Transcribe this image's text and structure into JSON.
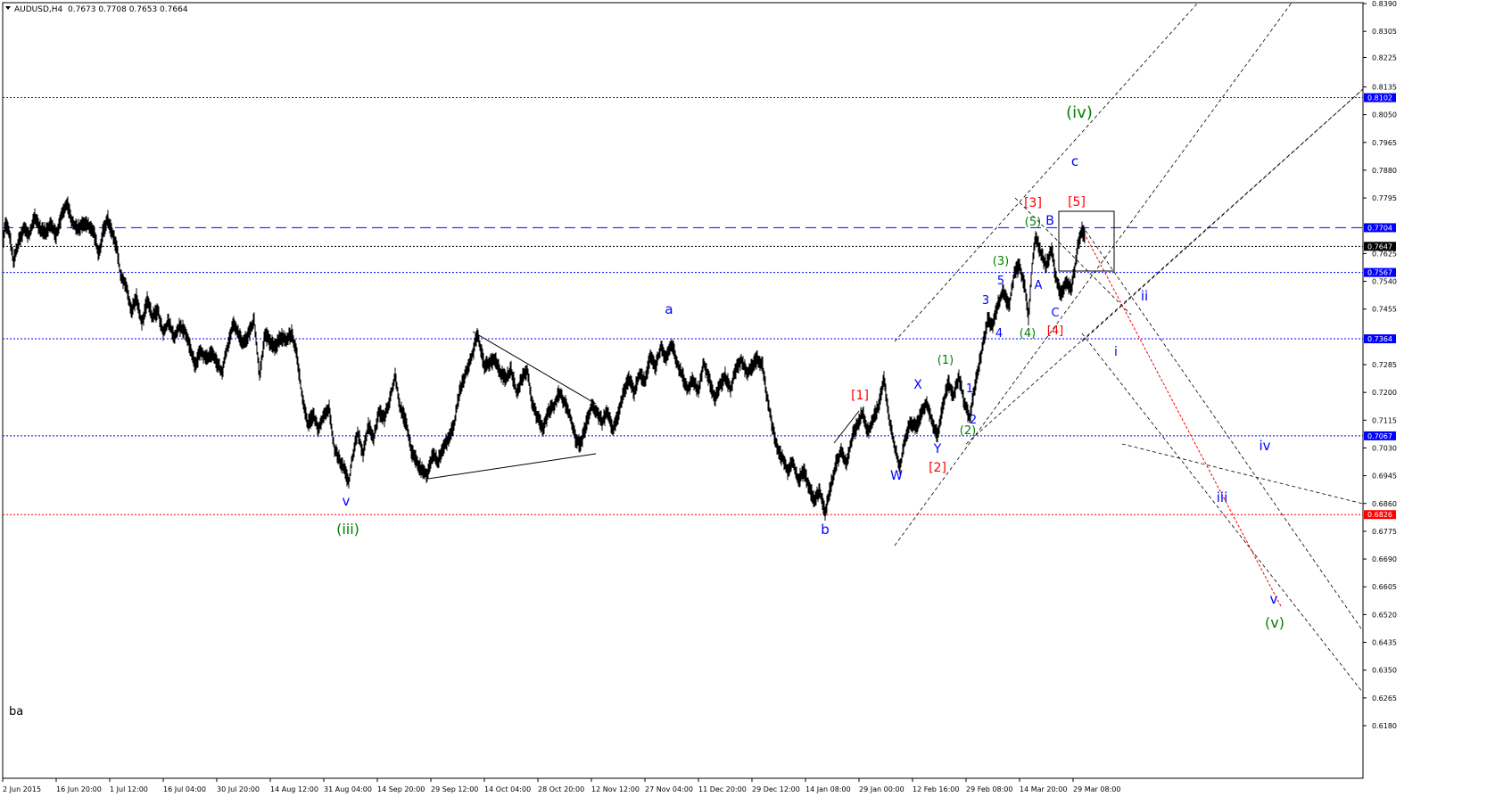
{
  "header": {
    "symbol": "AUDUSD,H4",
    "ohlc": "0.7673 0.7708 0.7653 0.7664"
  },
  "corner_label": "ba",
  "chart_data": {
    "type": "line",
    "title": "",
    "y_axis": {
      "ticks": [
        "0.8390",
        "0.8305",
        "0.8225",
        "0.8135",
        "0.8050",
        "0.7965",
        "0.7880",
        "0.7795",
        "0.7625",
        "0.7540",
        "0.7455",
        "0.7285",
        "0.7200",
        "0.7115",
        "0.7030",
        "0.6945",
        "0.6860",
        "0.6775",
        "0.6690",
        "0.6605",
        "0.6520",
        "0.6435",
        "0.6350",
        "0.6265",
        "0.6180"
      ]
    },
    "x_axis": {
      "ticks": [
        "2 Jun 2015",
        "16 Jun 20:00",
        "1 Jul 12:00",
        "16 Jul 04:00",
        "30 Jul 20:00",
        "14 Aug 12:00",
        "31 Aug 04:00",
        "14 Sep 20:00",
        "29 Sep 12:00",
        "14 Oct 04:00",
        "28 Oct 20:00",
        "12 Nov 12:00",
        "27 Nov 04:00",
        "11 Dec 20:00",
        "29 Dec 12:00",
        "14 Jan 08:00",
        "29 Jan 00:00",
        "12 Feb 16:00",
        "29 Feb 08:00",
        "14 Mar 20:00",
        "29 Mar 08:00"
      ]
    },
    "levels": [
      {
        "value": "0.8102",
        "color": "#0000ff",
        "style": "dotted"
      },
      {
        "value": "0.7704",
        "color": "#0000ff",
        "style": "dashed"
      },
      {
        "value": "0.7647",
        "color": "#000000",
        "style": "dotted"
      },
      {
        "value": "0.7567",
        "color": "#0000ff",
        "style": "dotted"
      },
      {
        "value": "0.7364",
        "color": "#0000ff",
        "style": "dotted"
      },
      {
        "value": "0.7067",
        "color": "#0000ff",
        "style": "dotted"
      },
      {
        "value": "0.6826",
        "color": "#ff0000",
        "style": "dotted"
      }
    ],
    "price_path": [
      {
        "i": 0,
        "p": 0.765
      },
      {
        "i": 3,
        "p": 0.772
      },
      {
        "i": 8,
        "p": 0.768
      },
      {
        "i": 12,
        "p": 0.76
      },
      {
        "i": 18,
        "p": 0.766
      },
      {
        "i": 24,
        "p": 0.77
      },
      {
        "i": 30,
        "p": 0.768
      },
      {
        "i": 36,
        "p": 0.774
      },
      {
        "i": 42,
        "p": 0.77
      },
      {
        "i": 48,
        "p": 0.769
      },
      {
        "i": 54,
        "p": 0.772
      },
      {
        "i": 60,
        "p": 0.768
      },
      {
        "i": 66,
        "p": 0.774
      },
      {
        "i": 72,
        "p": 0.778
      },
      {
        "i": 78,
        "p": 0.772
      },
      {
        "i": 84,
        "p": 0.77
      },
      {
        "i": 90,
        "p": 0.772
      },
      {
        "i": 96,
        "p": 0.771
      },
      {
        "i": 102,
        "p": 0.769
      },
      {
        "i": 108,
        "p": 0.762
      },
      {
        "i": 112,
        "p": 0.769
      },
      {
        "i": 118,
        "p": 0.773
      },
      {
        "i": 124,
        "p": 0.768
      },
      {
        "i": 128,
        "p": 0.764
      },
      {
        "i": 132,
        "p": 0.756
      },
      {
        "i": 138,
        "p": 0.753
      },
      {
        "i": 144,
        "p": 0.745
      },
      {
        "i": 150,
        "p": 0.749
      },
      {
        "i": 156,
        "p": 0.741
      },
      {
        "i": 162,
        "p": 0.748
      },
      {
        "i": 168,
        "p": 0.743
      },
      {
        "i": 174,
        "p": 0.745
      },
      {
        "i": 180,
        "p": 0.738
      },
      {
        "i": 186,
        "p": 0.742
      },
      {
        "i": 192,
        "p": 0.737
      },
      {
        "i": 198,
        "p": 0.74
      },
      {
        "i": 204,
        "p": 0.739
      },
      {
        "i": 210,
        "p": 0.734
      },
      {
        "i": 216,
        "p": 0.728
      },
      {
        "i": 222,
        "p": 0.733
      },
      {
        "i": 228,
        "p": 0.73
      },
      {
        "i": 234,
        "p": 0.732
      },
      {
        "i": 240,
        "p": 0.729
      },
      {
        "i": 246,
        "p": 0.726
      },
      {
        "i": 252,
        "p": 0.734
      },
      {
        "i": 258,
        "p": 0.741
      },
      {
        "i": 264,
        "p": 0.738
      },
      {
        "i": 270,
        "p": 0.735
      },
      {
        "i": 276,
        "p": 0.738
      },
      {
        "i": 282,
        "p": 0.742
      },
      {
        "i": 288,
        "p": 0.725
      },
      {
        "i": 294,
        "p": 0.738
      },
      {
        "i": 300,
        "p": 0.735
      },
      {
        "i": 306,
        "p": 0.734
      },
      {
        "i": 312,
        "p": 0.737
      },
      {
        "i": 318,
        "p": 0.736
      },
      {
        "i": 324,
        "p": 0.738
      },
      {
        "i": 330,
        "p": 0.731
      },
      {
        "i": 336,
        "p": 0.718
      },
      {
        "i": 342,
        "p": 0.71
      },
      {
        "i": 348,
        "p": 0.713
      },
      {
        "i": 354,
        "p": 0.709
      },
      {
        "i": 360,
        "p": 0.713
      },
      {
        "i": 366,
        "p": 0.715
      },
      {
        "i": 372,
        "p": 0.703
      },
      {
        "i": 378,
        "p": 0.699
      },
      {
        "i": 384,
        "p": 0.696
      },
      {
        "i": 388,
        "p": 0.692
      },
      {
        "i": 392,
        "p": 0.7
      },
      {
        "i": 398,
        "p": 0.708
      },
      {
        "i": 404,
        "p": 0.701
      },
      {
        "i": 410,
        "p": 0.71
      },
      {
        "i": 416,
        "p": 0.706
      },
      {
        "i": 422,
        "p": 0.714
      },
      {
        "i": 428,
        "p": 0.712
      },
      {
        "i": 434,
        "p": 0.718
      },
      {
        "i": 440,
        "p": 0.725
      },
      {
        "i": 446,
        "p": 0.715
      },
      {
        "i": 452,
        "p": 0.711
      },
      {
        "i": 458,
        "p": 0.702
      },
      {
        "i": 464,
        "p": 0.699
      },
      {
        "i": 470,
        "p": 0.696
      },
      {
        "i": 476,
        "p": 0.695
      },
      {
        "i": 482,
        "p": 0.701
      },
      {
        "i": 488,
        "p": 0.699
      },
      {
        "i": 494,
        "p": 0.703
      },
      {
        "i": 500,
        "p": 0.706
      },
      {
        "i": 506,
        "p": 0.71
      },
      {
        "i": 512,
        "p": 0.72
      },
      {
        "i": 518,
        "p": 0.725
      },
      {
        "i": 524,
        "p": 0.73
      },
      {
        "i": 528,
        "p": 0.733
      },
      {
        "i": 532,
        "p": 0.738
      },
      {
        "i": 536,
        "p": 0.733
      },
      {
        "i": 540,
        "p": 0.728
      },
      {
        "i": 546,
        "p": 0.729
      },
      {
        "i": 552,
        "p": 0.73
      },
      {
        "i": 558,
        "p": 0.726
      },
      {
        "i": 564,
        "p": 0.724
      },
      {
        "i": 570,
        "p": 0.727
      },
      {
        "i": 576,
        "p": 0.72
      },
      {
        "i": 582,
        "p": 0.724
      },
      {
        "i": 588,
        "p": 0.727
      },
      {
        "i": 594,
        "p": 0.716
      },
      {
        "i": 600,
        "p": 0.712
      },
      {
        "i": 606,
        "p": 0.709
      },
      {
        "i": 612,
        "p": 0.714
      },
      {
        "i": 618,
        "p": 0.716
      },
      {
        "i": 624,
        "p": 0.72
      },
      {
        "i": 630,
        "p": 0.717
      },
      {
        "i": 636,
        "p": 0.713
      },
      {
        "i": 642,
        "p": 0.706
      },
      {
        "i": 648,
        "p": 0.704
      },
      {
        "i": 654,
        "p": 0.71
      },
      {
        "i": 660,
        "p": 0.716
      },
      {
        "i": 666,
        "p": 0.714
      },
      {
        "i": 672,
        "p": 0.711
      },
      {
        "i": 678,
        "p": 0.714
      },
      {
        "i": 684,
        "p": 0.708
      },
      {
        "i": 690,
        "p": 0.713
      },
      {
        "i": 696,
        "p": 0.72
      },
      {
        "i": 702,
        "p": 0.724
      },
      {
        "i": 708,
        "p": 0.72
      },
      {
        "i": 714,
        "p": 0.726
      },
      {
        "i": 720,
        "p": 0.723
      },
      {
        "i": 726,
        "p": 0.731
      },
      {
        "i": 732,
        "p": 0.728
      },
      {
        "i": 738,
        "p": 0.734
      },
      {
        "i": 744,
        "p": 0.73
      },
      {
        "i": 750,
        "p": 0.735
      },
      {
        "i": 756,
        "p": 0.729
      },
      {
        "i": 762,
        "p": 0.725
      },
      {
        "i": 768,
        "p": 0.721
      },
      {
        "i": 774,
        "p": 0.724
      },
      {
        "i": 780,
        "p": 0.72
      },
      {
        "i": 786,
        "p": 0.729
      },
      {
        "i": 792,
        "p": 0.724
      },
      {
        "i": 798,
        "p": 0.718
      },
      {
        "i": 804,
        "p": 0.722
      },
      {
        "i": 810,
        "p": 0.725
      },
      {
        "i": 816,
        "p": 0.721
      },
      {
        "i": 822,
        "p": 0.727
      },
      {
        "i": 828,
        "p": 0.73
      },
      {
        "i": 834,
        "p": 0.726
      },
      {
        "i": 840,
        "p": 0.728
      },
      {
        "i": 846,
        "p": 0.73
      },
      {
        "i": 852,
        "p": 0.728
      },
      {
        "i": 856,
        "p": 0.72
      },
      {
        "i": 862,
        "p": 0.711
      },
      {
        "i": 868,
        "p": 0.703
      },
      {
        "i": 874,
        "p": 0.7
      },
      {
        "i": 880,
        "p": 0.696
      },
      {
        "i": 886,
        "p": 0.699
      },
      {
        "i": 892,
        "p": 0.693
      },
      {
        "i": 898,
        "p": 0.696
      },
      {
        "i": 904,
        "p": 0.691
      },
      {
        "i": 910,
        "p": 0.687
      },
      {
        "i": 916,
        "p": 0.69
      },
      {
        "i": 922,
        "p": 0.683
      },
      {
        "i": 928,
        "p": 0.691
      },
      {
        "i": 934,
        "p": 0.698
      },
      {
        "i": 940,
        "p": 0.702
      },
      {
        "i": 946,
        "p": 0.698
      },
      {
        "i": 952,
        "p": 0.706
      },
      {
        "i": 958,
        "p": 0.71
      },
      {
        "i": 964,
        "p": 0.714
      },
      {
        "i": 970,
        "p": 0.708
      },
      {
        "i": 976,
        "p": 0.712
      },
      {
        "i": 982,
        "p": 0.716
      },
      {
        "i": 988,
        "p": 0.724
      },
      {
        "i": 994,
        "p": 0.712
      },
      {
        "i": 1000,
        "p": 0.703
      },
      {
        "i": 1006,
        "p": 0.697
      },
      {
        "i": 1012,
        "p": 0.706
      },
      {
        "i": 1018,
        "p": 0.711
      },
      {
        "i": 1024,
        "p": 0.709
      },
      {
        "i": 1030,
        "p": 0.714
      },
      {
        "i": 1036,
        "p": 0.717
      },
      {
        "i": 1042,
        "p": 0.711
      },
      {
        "i": 1048,
        "p": 0.707
      },
      {
        "i": 1054,
        "p": 0.716
      },
      {
        "i": 1060,
        "p": 0.723
      },
      {
        "i": 1066,
        "p": 0.719
      },
      {
        "i": 1072,
        "p": 0.725
      },
      {
        "i": 1078,
        "p": 0.717
      },
      {
        "i": 1084,
        "p": 0.712
      },
      {
        "i": 1088,
        "p": 0.719
      },
      {
        "i": 1092,
        "p": 0.725
      },
      {
        "i": 1098,
        "p": 0.733
      },
      {
        "i": 1104,
        "p": 0.742
      },
      {
        "i": 1110,
        "p": 0.741
      },
      {
        "i": 1116,
        "p": 0.747
      },
      {
        "i": 1122,
        "p": 0.751
      },
      {
        "i": 1128,
        "p": 0.746
      },
      {
        "i": 1134,
        "p": 0.756
      },
      {
        "i": 1140,
        "p": 0.759
      },
      {
        "i": 1146,
        "p": 0.752
      },
      {
        "i": 1150,
        "p": 0.743
      },
      {
        "i": 1154,
        "p": 0.758
      },
      {
        "i": 1158,
        "p": 0.768
      },
      {
        "i": 1164,
        "p": 0.762
      },
      {
        "i": 1170,
        "p": 0.759
      },
      {
        "i": 1176,
        "p": 0.764
      },
      {
        "i": 1180,
        "p": 0.756
      },
      {
        "i": 1186,
        "p": 0.75
      },
      {
        "i": 1192,
        "p": 0.754
      },
      {
        "i": 1198,
        "p": 0.752
      },
      {
        "i": 1202,
        "p": 0.758
      },
      {
        "i": 1206,
        "p": 0.766
      },
      {
        "i": 1210,
        "p": 0.77
      },
      {
        "i": 1214,
        "p": 0.7664
      }
    ],
    "lines": [
      {
        "from": [
          37,
          0.7364
        ],
        "to": [
          80,
          0.715
        ],
        "color": "#000000",
        "style": "solid"
      },
      {
        "from": [
          37,
          0.7364
        ],
        "to": [
          80,
          0.715
        ],
        "color": "#000000",
        "style": "solid"
      }
    ],
    "wave_labels": [
      {
        "text": "(iv)",
        "color": "#008000"
      },
      {
        "text": "c",
        "color": "#0000ff"
      },
      {
        "text": "[3]",
        "color": "#ff0000"
      },
      {
        "text": "[5]",
        "color": "#ff0000"
      },
      {
        "text": "(5)",
        "color": "#008000"
      },
      {
        "text": "B",
        "color": "#0000ff"
      },
      {
        "text": "(3)",
        "color": "#008000"
      },
      {
        "text": "5",
        "color": "#0000ff"
      },
      {
        "text": "A",
        "color": "#0000ff"
      },
      {
        "text": "3",
        "color": "#0000ff"
      },
      {
        "text": "a",
        "color": "#0000ff"
      },
      {
        "text": "ii",
        "color": "#0000ff"
      },
      {
        "text": "C",
        "color": "#0000ff"
      },
      {
        "text": "4",
        "color": "#0000ff"
      },
      {
        "text": "(4)",
        "color": "#008000"
      },
      {
        "text": "[4]",
        "color": "#ff0000"
      },
      {
        "text": "i",
        "color": "#0000ff"
      },
      {
        "text": "(1)",
        "color": "#008000"
      },
      {
        "text": "X",
        "color": "#0000ff"
      },
      {
        "text": "1",
        "color": "#0000ff"
      },
      {
        "text": "[1]",
        "color": "#ff0000"
      },
      {
        "text": "2",
        "color": "#0000ff"
      },
      {
        "text": "(2)",
        "color": "#008000"
      },
      {
        "text": "Y",
        "color": "#0000ff"
      },
      {
        "text": "iv",
        "color": "#0000ff"
      },
      {
        "text": "[2]",
        "color": "#ff0000"
      },
      {
        "text": "W",
        "color": "#0000ff"
      },
      {
        "text": "v",
        "color": "#0000ff"
      },
      {
        "text": "iii",
        "color": "#0000ff"
      },
      {
        "text": "b",
        "color": "#0000ff"
      },
      {
        "text": "(iii)",
        "color": "#008000"
      },
      {
        "text": "v",
        "color": "#0000ff"
      },
      {
        "text": "(v)",
        "color": "#008000"
      }
    ]
  }
}
